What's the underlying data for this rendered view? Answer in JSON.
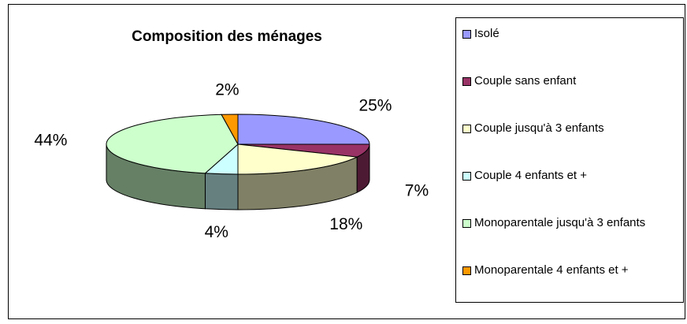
{
  "chart_data": {
    "type": "pie3d",
    "title": "Composition des ménages",
    "categories": [
      "Isolé",
      "Couple sans enfant",
      "Couple jusqu'à 3 enfants",
      "Couple 4 enfants et +",
      "Monoparentale jusqu'à 3 enfants",
      "Monoparentale 4 enfants et +"
    ],
    "values": [
      25,
      7,
      18,
      4,
      44,
      2
    ],
    "value_labels": [
      "25%",
      "7%",
      "18%",
      "4%",
      "44%",
      "2%"
    ],
    "colors": [
      "#9999ff",
      "#993366",
      "#ffffcc",
      "#ccffff",
      "#ccffcc",
      "#ff9900"
    ],
    "legend": "right"
  }
}
